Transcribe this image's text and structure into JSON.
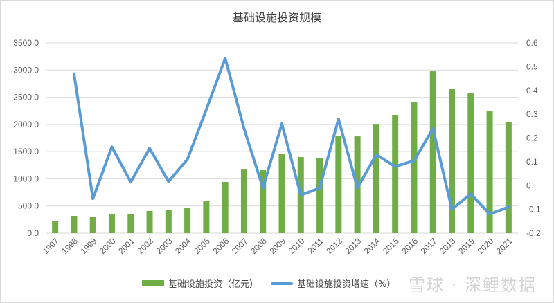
{
  "chart_data": {
    "type": "bar+line",
    "title": "基础设施投资规模",
    "categories": [
      "1997",
      "1998",
      "1999",
      "2000",
      "2001",
      "2002",
      "2003",
      "2004",
      "2005",
      "2006",
      "2007",
      "2008",
      "2009",
      "2010",
      "2011",
      "2012",
      "2013",
      "2014",
      "2015",
      "2016",
      "2017",
      "2018",
      "2019",
      "2020",
      "2021"
    ],
    "series": [
      {
        "name": "基础设施投资（亿元）",
        "type": "bar",
        "axis": "left",
        "color": "#70ad47",
        "values": [
          216,
          318,
          293,
          343,
          356,
          407,
          420,
          470,
          598,
          941,
          1170,
          1158,
          1463,
          1400,
          1387,
          1794,
          1781,
          2010,
          2176,
          2405,
          2977,
          2659,
          2570,
          2252,
          2048
        ]
      },
      {
        "name": "基础设施投资增速（%）",
        "type": "line",
        "axis": "right",
        "color": "#5b9bd5",
        "values": [
          null,
          0.47,
          -0.055,
          0.163,
          0.015,
          0.157,
          0.017,
          0.11,
          0.32,
          0.535,
          0.24,
          -0.01,
          0.26,
          -0.04,
          -0.01,
          0.28,
          -0.01,
          0.13,
          0.08,
          0.105,
          0.24,
          -0.1,
          -0.035,
          -0.12,
          -0.09
        ]
      }
    ],
    "left_axis": {
      "ylim": [
        0,
        3500
      ],
      "ticks": [
        "0.0",
        "500.0",
        "1000.0",
        "1500.0",
        "2000.0",
        "2500.0",
        "3000.0",
        "3500.0"
      ]
    },
    "right_axis": {
      "ylim": [
        -0.2,
        0.6
      ],
      "ticks": [
        "-0.2",
        "-0.1",
        "0",
        "0.1",
        "0.2",
        "0.3",
        "0.4",
        "0.5",
        "0.6"
      ]
    },
    "grid": true,
    "legend": "bottom"
  },
  "watermark": "雪球 · 深鲤数据"
}
